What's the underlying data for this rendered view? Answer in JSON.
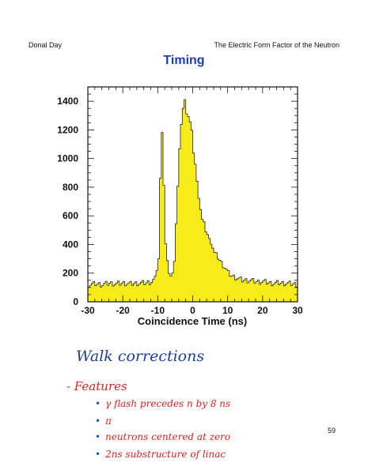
{
  "header": {
    "author": "Donal Day",
    "talk_title": "The Electric Form Factor of the Neutron"
  },
  "slide_title": "Timing",
  "chart_data": {
    "type": "area",
    "xlabel": "Coincidence Time (ns)",
    "ylabel": "",
    "xlim": [
      -30,
      30
    ],
    "ylim": [
      0,
      1500
    ],
    "xticks": [
      -30,
      -20,
      -10,
      0,
      10,
      20,
      30
    ],
    "yticks": [
      0,
      200,
      400,
      600,
      800,
      1000,
      1200,
      1400
    ],
    "tick_labels_x": [
      "-30",
      "-20",
      "-10",
      "0",
      "10",
      "20",
      "30"
    ],
    "tick_labels_y": [
      "0",
      "200",
      "400",
      "600",
      "800",
      "1000",
      "1200",
      "1400"
    ],
    "fill_color": "#f5ec1a",
    "grid": false,
    "x": [
      -30,
      -28,
      -26,
      -24,
      -22,
      -20,
      -18,
      -16,
      -14,
      -12,
      -11,
      -10,
      -9.5,
      -9,
      -8.5,
      -8,
      -7.5,
      -7,
      -6.5,
      -6,
      -5.5,
      -5,
      -4.5,
      -4,
      -3.5,
      -3,
      -2.5,
      -2,
      -1.5,
      -1,
      -0.5,
      0,
      0.5,
      1,
      1.5,
      2,
      2.5,
      3,
      3.5,
      4,
      4.5,
      5,
      5.5,
      6,
      7,
      8,
      9,
      10,
      11,
      12,
      14,
      16,
      18,
      20,
      22,
      24,
      26,
      28,
      30
    ],
    "y": [
      120,
      125,
      120,
      130,
      125,
      130,
      125,
      130,
      130,
      140,
      160,
      300,
      850,
      1200,
      820,
      400,
      270,
      210,
      180,
      190,
      300,
      550,
      800,
      1050,
      1250,
      1350,
      1400,
      1330,
      1300,
      1250,
      1180,
      1050,
      960,
      830,
      740,
      650,
      570,
      540,
      500,
      470,
      430,
      420,
      380,
      340,
      310,
      270,
      240,
      200,
      180,
      170,
      150,
      150,
      140,
      140,
      130,
      130,
      130,
      125,
      120
    ]
  },
  "notes": {
    "heading": "Walk corrections",
    "features_label": "- Features",
    "items": [
      "γ flash precedes n by 8 ns",
      "π",
      "neutrons centered at zero",
      "2ns substructure of linac"
    ]
  },
  "page_number": "59"
}
